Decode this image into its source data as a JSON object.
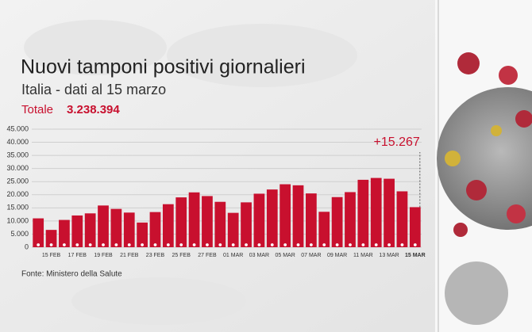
{
  "chart_data": {
    "type": "bar",
    "title": "Nuovi tamponi positivi giornalieri",
    "subtitle": "Italia - dati al 15 marzo",
    "total_label": "Totale",
    "total_value": "3.238.394",
    "source": "Fonte: Ministero della Salute",
    "categories": [
      null,
      "15 FEB",
      null,
      "17 FEB",
      null,
      "19 FEB",
      null,
      "21 FEB",
      null,
      "23 FEB",
      null,
      "25 FEB",
      null,
      "27 FEB",
      null,
      "01 MAR",
      null,
      "03 MAR",
      null,
      "05 MAR",
      null,
      "07 MAR",
      null,
      "09 MAR",
      null,
      "11 MAR",
      null,
      "13 MAR",
      null,
      "15 MAR"
    ],
    "values": [
      11000,
      6600,
      10400,
      12100,
      12900,
      15900,
      14600,
      13200,
      9400,
      13400,
      16400,
      19000,
      20900,
      19500,
      17300,
      13100,
      17100,
      20400,
      22000,
      24000,
      23600,
      20500,
      13500,
      19100,
      21000,
      25700,
      26400,
      26100,
      21300,
      15267
    ],
    "value_labels": [
      null,
      null,
      null,
      null,
      null,
      null,
      null,
      null,
      null,
      null,
      null,
      null,
      null,
      null,
      null,
      null,
      null,
      null,
      null,
      null,
      null,
      null,
      null,
      null,
      null,
      null,
      null,
      null,
      null,
      "+15.267"
    ],
    "color": "#c8102e",
    "ylim": [
      0,
      45000
    ],
    "yticks": [
      {
        "value": 0,
        "label": "0"
      },
      {
        "value": 5000,
        "label": "5.000"
      },
      {
        "value": 10000,
        "label": "10.000"
      },
      {
        "value": 15000,
        "label": "15.000"
      },
      {
        "value": 20000,
        "label": "20.000"
      },
      {
        "value": 25000,
        "label": "25.000"
      },
      {
        "value": 30000,
        "label": "30.000"
      },
      {
        "value": 35000,
        "label": "35.000"
      },
      {
        "value": 40000,
        "label": "40.000"
      },
      {
        "value": 45000,
        "label": "45.000"
      }
    ],
    "grid": true
  }
}
